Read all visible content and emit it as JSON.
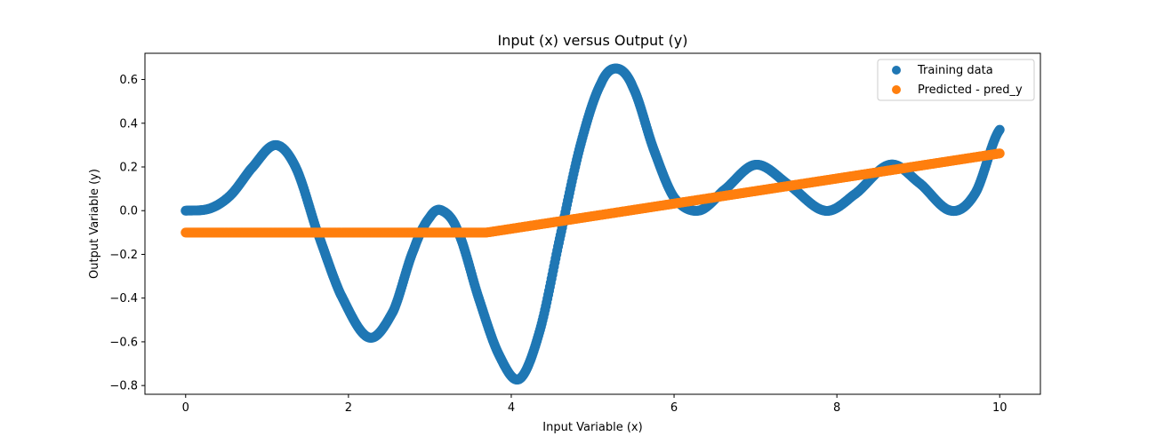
{
  "chart_data": {
    "type": "scatter",
    "title": "Input (x) versus Output (y)",
    "xlabel": "Input Variable (x)",
    "ylabel": "Output Variable (y)",
    "xlim": [
      -0.5,
      10.5
    ],
    "ylim": [
      -0.84,
      0.72
    ],
    "xticks": [
      0,
      2,
      4,
      6,
      8,
      10
    ],
    "yticks": [
      -0.8,
      -0.6,
      -0.4,
      -0.2,
      0.0,
      0.2,
      0.4,
      0.6
    ],
    "grid": false,
    "legend_position": "top-right",
    "series": [
      {
        "name": "Training data",
        "color": "#1f77b4",
        "x_range": [
          0,
          10
        ],
        "point_count": 1000,
        "curve_points": [
          [
            0.0,
            0.0
          ],
          [
            0.3,
            0.01
          ],
          [
            0.55,
            0.07
          ],
          [
            0.8,
            0.19
          ],
          [
            1.1,
            0.3
          ],
          [
            1.35,
            0.2
          ],
          [
            1.6,
            -0.08
          ],
          [
            1.9,
            -0.38
          ],
          [
            2.25,
            -0.58
          ],
          [
            2.55,
            -0.46
          ],
          [
            2.8,
            -0.18
          ],
          [
            3.0,
            -0.03
          ],
          [
            3.15,
            0.0
          ],
          [
            3.35,
            -0.1
          ],
          [
            3.6,
            -0.4
          ],
          [
            3.85,
            -0.66
          ],
          [
            4.1,
            -0.77
          ],
          [
            4.35,
            -0.55
          ],
          [
            4.6,
            -0.12
          ],
          [
            4.85,
            0.3
          ],
          [
            5.1,
            0.58
          ],
          [
            5.3,
            0.65
          ],
          [
            5.5,
            0.56
          ],
          [
            5.75,
            0.28
          ],
          [
            6.0,
            0.06
          ],
          [
            6.3,
            0.0
          ],
          [
            6.6,
            0.09
          ],
          [
            7.0,
            0.21
          ],
          [
            7.4,
            0.12
          ],
          [
            7.85,
            0.0
          ],
          [
            8.2,
            0.07
          ],
          [
            8.65,
            0.21
          ],
          [
            9.0,
            0.13
          ],
          [
            9.4,
            0.0
          ],
          [
            9.7,
            0.08
          ],
          [
            10.0,
            0.37
          ]
        ]
      },
      {
        "name": "Predicted - pred_y",
        "color": "#ff7f0e",
        "x_range": [
          0,
          10
        ],
        "point_count": 1000,
        "curve_points": [
          [
            0.0,
            -0.1
          ],
          [
            3.7,
            -0.1
          ],
          [
            10.0,
            0.262
          ]
        ]
      }
    ]
  }
}
